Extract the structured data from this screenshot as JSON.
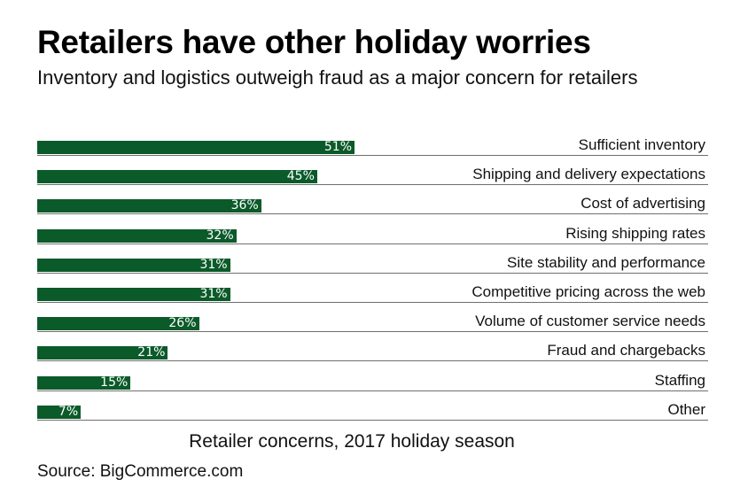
{
  "header": {
    "title": "Retailers have other holiday worries",
    "subtitle": "Inventory and logistics outweigh fraud as a major concern for retailers"
  },
  "footer": {
    "chart_caption": "Retailer concerns, 2017 holiday season",
    "source": "Source: BigCommerce.com"
  },
  "colors": {
    "bar": "#0b5a2a",
    "rule": "#6f6f6f",
    "bar_text": "#ffffff"
  },
  "chart_data": {
    "type": "bar",
    "orientation": "horizontal",
    "title": "Retailers have other holiday worries",
    "subtitle": "Inventory and logistics outweigh fraud as a major concern for retailers",
    "xlabel": "Retailer concerns, 2017 holiday season",
    "ylabel": "",
    "categories": [
      "Sufficient inventory",
      "Shipping and delivery expectations",
      "Cost of advertising",
      "Rising shipping rates",
      "Site stability and performance",
      "Competitive pricing across the web",
      "Volume of customer service needs",
      "Fraud and chargebacks",
      "Staffing",
      "Other"
    ],
    "values": [
      51,
      45,
      36,
      32,
      31,
      31,
      26,
      21,
      15,
      7
    ],
    "value_labels": [
      "51%",
      "45%",
      "36%",
      "32%",
      "31%",
      "31%",
      "26%",
      "21%",
      "15%",
      "7%"
    ],
    "unit": "%",
    "xlim": [
      0,
      100
    ],
    "grid": false,
    "legend": null,
    "source": "Source: BigCommerce.com"
  }
}
